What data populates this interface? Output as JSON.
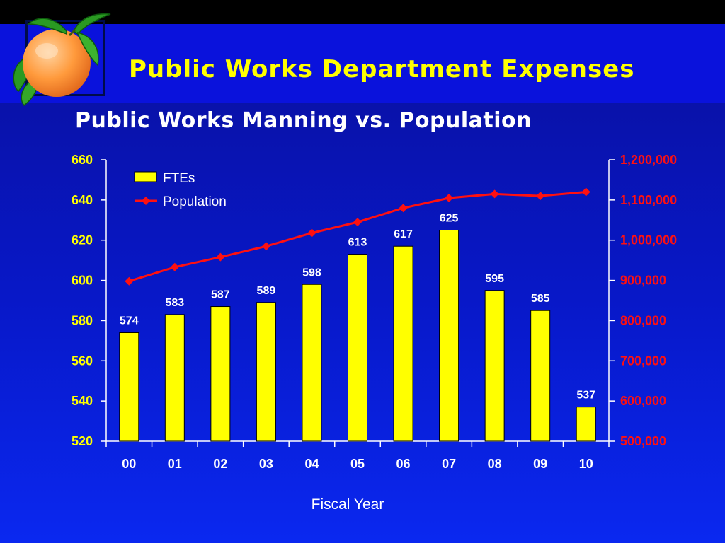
{
  "slide": {
    "title": "Public Works Department Expenses"
  },
  "logo": {
    "icon": "orange-fruit-icon"
  },
  "chart_data": {
    "type": "bar",
    "title": "Public Works Manning vs. Population",
    "xlabel": "Fiscal Year",
    "categories": [
      "00",
      "01",
      "02",
      "03",
      "04",
      "05",
      "06",
      "07",
      "08",
      "09",
      "10"
    ],
    "series": [
      {
        "name": "FTEs",
        "type": "bar",
        "axis": "left",
        "color": "#ffff00",
        "values": [
          574,
          583,
          587,
          589,
          598,
          613,
          617,
          625,
          595,
          585,
          537
        ]
      },
      {
        "name": "Population",
        "type": "line",
        "axis": "right",
        "color": "#ff1010",
        "values": [
          898000,
          933000,
          958000,
          985000,
          1018000,
          1045000,
          1080000,
          1105000,
          1115000,
          1110000,
          1120000
        ]
      }
    ],
    "left_axis": {
      "min": 520,
      "max": 660,
      "step": 20,
      "tick_labels": [
        "520",
        "540",
        "560",
        "580",
        "600",
        "620",
        "640",
        "660"
      ],
      "color": "#ffff00"
    },
    "right_axis": {
      "min": 500000,
      "max": 1200000,
      "step": 100000,
      "tick_labels": [
        "500,000",
        "600,000",
        "700,000",
        "800,000",
        "900,000",
        "1,000,000",
        "1,100,000",
        "1,200,000"
      ],
      "color": "#ff1010"
    },
    "legend_position": "top-left",
    "grid": false
  }
}
